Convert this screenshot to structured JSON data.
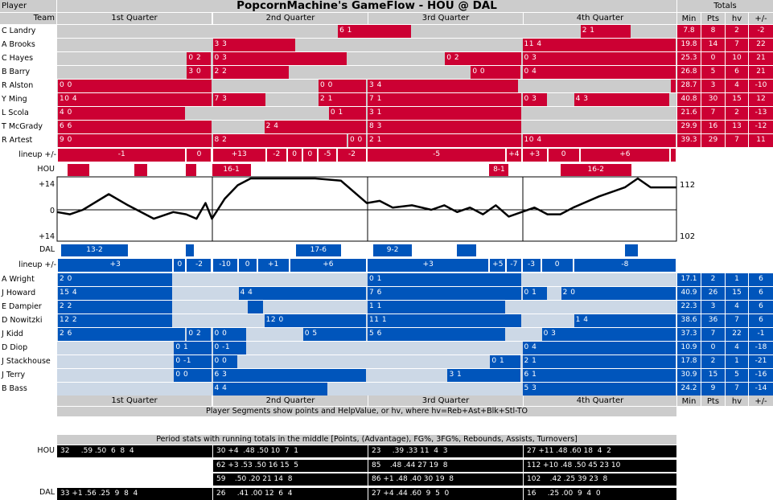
{
  "header": {
    "player_label": "Player",
    "team_label": "Team",
    "title": "PopcornMachine's GameFlow - HOU @ DAL",
    "totals_label": "Totals",
    "quarters": [
      "1st Quarter",
      "2nd Quarter",
      "3rd Quarter",
      "4th Quarter"
    ],
    "total_cols": [
      "Min",
      "Pts",
      "hv",
      "+/-"
    ]
  },
  "colors": {
    "hou": "#cc0033",
    "dal": "#0055bb",
    "hou_bg": "#cccccc",
    "dal_bg": "#ccd8e6"
  },
  "hou": {
    "team": "HOU",
    "lineup_label": "lineup +/-",
    "players": [
      {
        "name": "C Landry",
        "segments": [
          {
            "t0": 21.7,
            "t1": 27.5,
            "label": "6 1"
          },
          {
            "t0": 40.5,
            "t1": 44.5,
            "label": "2 1"
          }
        ],
        "totals": {
          "min": "7.8",
          "pts": "8",
          "hv": "2",
          "pm": "-2"
        }
      },
      {
        "name": "A Brooks",
        "segments": [
          {
            "t0": 12.0,
            "t1": 18.5,
            "label": "3 3"
          },
          {
            "t0": 36.0,
            "t1": 48.0,
            "label": "11 4"
          }
        ],
        "totals": {
          "min": "19.8",
          "pts": "14",
          "hv": "7",
          "pm": "22"
        }
      },
      {
        "name": "C Hayes",
        "segments": [
          {
            "t0": 10.0,
            "t1": 12.0,
            "label": "0 2"
          },
          {
            "t0": 12.0,
            "t1": 22.5,
            "label": "0 3"
          },
          {
            "t0": 30.0,
            "t1": 36.0,
            "label": "0 2"
          },
          {
            "t0": 36.0,
            "t1": 48.0,
            "label": "0 3"
          }
        ],
        "totals": {
          "min": "25.3",
          "pts": "0",
          "hv": "10",
          "pm": "21"
        }
      },
      {
        "name": "B Barry",
        "segments": [
          {
            "t0": 10.0,
            "t1": 12.0,
            "label": "3 0"
          },
          {
            "t0": 12.0,
            "t1": 18.0,
            "label": "2 2"
          },
          {
            "t0": 32.0,
            "t1": 36.0,
            "label": "0 0"
          },
          {
            "t0": 36.0,
            "t1": 48.0,
            "label": "0 4"
          }
        ],
        "totals": {
          "min": "26.8",
          "pts": "5",
          "hv": "6",
          "pm": "21"
        }
      },
      {
        "name": "R Alston",
        "segments": [
          {
            "t0": 0.0,
            "t1": 12.0,
            "label": "0 0"
          },
          {
            "t0": 20.2,
            "t1": 24.0,
            "label": "0 0"
          },
          {
            "t0": 24.0,
            "t1": 35.8,
            "label": "3 4"
          },
          {
            "t0": 47.5,
            "t1": 48.0,
            "label": ""
          }
        ],
        "totals": {
          "min": "28.7",
          "pts": "3",
          "hv": "4",
          "pm": "-10"
        }
      },
      {
        "name": "Y Ming",
        "segments": [
          {
            "t0": 0.0,
            "t1": 12.0,
            "label": "10 4"
          },
          {
            "t0": 12.0,
            "t1": 16.2,
            "label": "7 3"
          },
          {
            "t0": 20.2,
            "t1": 24.0,
            "label": "2 1"
          },
          {
            "t0": 24.0,
            "t1": 36.0,
            "label": "7 1"
          },
          {
            "t0": 36.0,
            "t1": 38.0,
            "label": "0 3"
          },
          {
            "t0": 40.0,
            "t1": 47.5,
            "label": "4 3"
          }
        ],
        "totals": {
          "min": "40.8",
          "pts": "30",
          "hv": "15",
          "pm": "12"
        }
      },
      {
        "name": "L Scola",
        "segments": [
          {
            "t0": 0.0,
            "t1": 10.0,
            "label": "4 0"
          },
          {
            "t0": 21.0,
            "t1": 24.0,
            "label": "0 1"
          },
          {
            "t0": 24.0,
            "t1": 36.0,
            "label": "3 1"
          }
        ],
        "totals": {
          "min": "21.6",
          "pts": "7",
          "hv": "2",
          "pm": "-13"
        }
      },
      {
        "name": "T McGrady",
        "segments": [
          {
            "t0": 0.0,
            "t1": 12.0,
            "label": "6 6"
          },
          {
            "t0": 16.0,
            "t1": 24.0,
            "label": "2 4"
          },
          {
            "t0": 24.0,
            "t1": 36.0,
            "label": "8 3"
          }
        ],
        "totals": {
          "min": "29.9",
          "pts": "16",
          "hv": "13",
          "pm": "-12"
        }
      },
      {
        "name": "R Artest",
        "segments": [
          {
            "t0": 0.0,
            "t1": 12.0,
            "label": "9 0"
          },
          {
            "t0": 12.0,
            "t1": 22.5,
            "label": "8 2"
          },
          {
            "t0": 22.5,
            "t1": 24.0,
            "label": "0 0"
          },
          {
            "t0": 24.0,
            "t1": 36.0,
            "label": "2 1"
          },
          {
            "t0": 36.0,
            "t1": 48.0,
            "label": "10 4"
          }
        ],
        "totals": {
          "min": "39.3",
          "pts": "29",
          "hv": "7",
          "pm": "11"
        }
      }
    ],
    "lineups": [
      {
        "t0": 0.0,
        "t1": 10.0,
        "v": "-1"
      },
      {
        "t0": 10.0,
        "t1": 12.0,
        "v": "0"
      },
      {
        "t0": 12.0,
        "t1": 16.2,
        "v": "+13"
      },
      {
        "t0": 16.2,
        "t1": 17.8,
        "v": "-2"
      },
      {
        "t0": 17.8,
        "t1": 19.0,
        "v": "0"
      },
      {
        "t0": 19.0,
        "t1": 20.2,
        "v": "0"
      },
      {
        "t0": 20.2,
        "t1": 21.7,
        "v": "-5"
      },
      {
        "t0": 21.7,
        "t1": 24.0,
        "v": "-2"
      },
      {
        "t0": 24.0,
        "t1": 34.8,
        "v": "-5"
      },
      {
        "t0": 34.8,
        "t1": 36.0,
        "v": "+4"
      },
      {
        "t0": 36.0,
        "t1": 38.0,
        "v": "+3"
      },
      {
        "t0": 38.0,
        "t1": 40.5,
        "v": "0"
      },
      {
        "t0": 40.5,
        "t1": 47.5,
        "v": "+6"
      },
      {
        "t0": 47.5,
        "t1": 48.0,
        "v": ""
      }
    ],
    "runs": [
      {
        "t0": 0.8,
        "t1": 2.5,
        "label": ""
      },
      {
        "t0": 6.0,
        "t1": 7.0,
        "label": ""
      },
      {
        "t0": 10.0,
        "t1": 10.8,
        "label": ""
      },
      {
        "t0": 12.0,
        "t1": 15.0,
        "label": "16-1"
      },
      {
        "t0": 33.5,
        "t1": 35.0,
        "label": "8-1"
      },
      {
        "t0": 39.0,
        "t1": 44.5,
        "label": "16-2"
      }
    ]
  },
  "dal": {
    "team": "DAL",
    "lineup_label": "lineup +/-",
    "players": [
      {
        "name": "A Wright",
        "segments": [
          {
            "t0": 0.0,
            "t1": 9.0,
            "label": "2 0"
          },
          {
            "t0": 24.0,
            "t1": 36.0,
            "label": "0 1"
          }
        ],
        "totals": {
          "min": "17.1",
          "pts": "2",
          "hv": "1",
          "pm": "6"
        }
      },
      {
        "name": "J Howard",
        "segments": [
          {
            "t0": 0.0,
            "t1": 9.0,
            "label": "15 4"
          },
          {
            "t0": 14.0,
            "t1": 24.0,
            "label": "4 4"
          },
          {
            "t0": 24.0,
            "t1": 36.0,
            "label": "7 6"
          },
          {
            "t0": 36.0,
            "t1": 38.0,
            "label": "0 1"
          },
          {
            "t0": 39.0,
            "t1": 48.0,
            "label": "2 0"
          }
        ],
        "totals": {
          "min": "40.9",
          "pts": "26",
          "hv": "15",
          "pm": "6"
        }
      },
      {
        "name": "E Dampier",
        "segments": [
          {
            "t0": 0.0,
            "t1": 9.0,
            "label": "2 2"
          },
          {
            "t0": 14.7,
            "t1": 16.0,
            "label": ""
          },
          {
            "t0": 24.0,
            "t1": 34.8,
            "label": "1 1"
          }
        ],
        "totals": {
          "min": "22.3",
          "pts": "3",
          "hv": "4",
          "pm": "6"
        }
      },
      {
        "name": "D Nowitzki",
        "segments": [
          {
            "t0": 0.0,
            "t1": 9.0,
            "label": "12 2"
          },
          {
            "t0": 16.0,
            "t1": 24.0,
            "label": "12 0"
          },
          {
            "t0": 24.0,
            "t1": 36.0,
            "label": "11 1"
          },
          {
            "t0": 40.0,
            "t1": 48.0,
            "label": "1 4"
          }
        ],
        "totals": {
          "min": "38.6",
          "pts": "36",
          "hv": "7",
          "pm": "6"
        }
      },
      {
        "name": "J Kidd",
        "segments": [
          {
            "t0": 0.0,
            "t1": 10.0,
            "label": "2 6"
          },
          {
            "t0": 10.0,
            "t1": 12.0,
            "label": "0 2"
          },
          {
            "t0": 12.0,
            "t1": 14.7,
            "label": "0 0"
          },
          {
            "t0": 19.0,
            "t1": 24.0,
            "label": "0 5"
          },
          {
            "t0": 24.0,
            "t1": 34.8,
            "label": "5 6"
          },
          {
            "t0": 37.5,
            "t1": 48.0,
            "label": "0 3"
          }
        ],
        "totals": {
          "min": "37.3",
          "pts": "7",
          "hv": "22",
          "pm": "-1"
        }
      },
      {
        "name": "D Diop",
        "segments": [
          {
            "t0": 9.0,
            "t1": 12.0,
            "label": "0 1"
          },
          {
            "t0": 12.0,
            "t1": 14.7,
            "label": "0 -1"
          },
          {
            "t0": 36.0,
            "t1": 48.0,
            "label": "0 4"
          }
        ],
        "totals": {
          "min": "10.9",
          "pts": "0",
          "hv": "4",
          "pm": "-18"
        }
      },
      {
        "name": "J Stackhouse",
        "segments": [
          {
            "t0": 9.0,
            "t1": 12.0,
            "label": "0 -1"
          },
          {
            "t0": 12.0,
            "t1": 14.0,
            "label": "0 0"
          },
          {
            "t0": 33.5,
            "t1": 36.0,
            "label": "0 1"
          },
          {
            "t0": 36.0,
            "t1": 48.0,
            "label": "2 1"
          }
        ],
        "totals": {
          "min": "17.8",
          "pts": "2",
          "hv": "1",
          "pm": "-21"
        }
      },
      {
        "name": "J Terry",
        "segments": [
          {
            "t0": 9.0,
            "t1": 12.0,
            "label": "0 0"
          },
          {
            "t0": 12.0,
            "t1": 24.0,
            "label": "6 3"
          },
          {
            "t0": 30.2,
            "t1": 36.0,
            "label": "3 1"
          },
          {
            "t0": 36.0,
            "t1": 48.0,
            "label": "6 1"
          }
        ],
        "totals": {
          "min": "30.9",
          "pts": "15",
          "hv": "5",
          "pm": "-16"
        }
      },
      {
        "name": "B Bass",
        "segments": [
          {
            "t0": 12.0,
            "t1": 21.0,
            "label": "4 4"
          },
          {
            "t0": 36.0,
            "t1": 48.0,
            "label": "5 3"
          }
        ],
        "totals": {
          "min": "24.2",
          "pts": "9",
          "hv": "7",
          "pm": "-14"
        }
      }
    ],
    "lineups": [
      {
        "t0": 0.0,
        "t1": 9.0,
        "v": "+3"
      },
      {
        "t0": 9.0,
        "t1": 10.0,
        "v": "0"
      },
      {
        "t0": 10.0,
        "t1": 12.0,
        "v": "-2"
      },
      {
        "t0": 12.0,
        "t1": 14.0,
        "v": "-10"
      },
      {
        "t0": 14.0,
        "t1": 15.5,
        "v": "0"
      },
      {
        "t0": 15.5,
        "t1": 18.0,
        "v": "+1"
      },
      {
        "t0": 18.0,
        "t1": 24.0,
        "v": "+6"
      },
      {
        "t0": 24.0,
        "t1": 33.5,
        "v": "+3"
      },
      {
        "t0": 33.5,
        "t1": 34.8,
        "v": "+5"
      },
      {
        "t0": 34.8,
        "t1": 36.0,
        "v": "-7"
      },
      {
        "t0": 36.0,
        "t1": 37.5,
        "v": "-3"
      },
      {
        "t0": 37.5,
        "t1": 40.0,
        "v": "0"
      },
      {
        "t0": 40.0,
        "t1": 48.0,
        "v": "-8"
      }
    ],
    "runs": [
      {
        "t0": 0.3,
        "t1": 5.5,
        "label": "13-2"
      },
      {
        "t0": 10.0,
        "t1": 10.6,
        "label": ""
      },
      {
        "t0": 18.5,
        "t1": 22.0,
        "label": "17-6"
      },
      {
        "t0": 24.5,
        "t1": 27.5,
        "label": "9-2"
      },
      {
        "t0": 31.0,
        "t1": 32.5,
        "label": ""
      },
      {
        "t0": 44.0,
        "t1": 45.0,
        "label": ""
      }
    ]
  },
  "chart_data": {
    "type": "line",
    "title": "PopcornMachine's GameFlow - HOU @ DAL",
    "x_domain": [
      0,
      48
    ],
    "y_axis_labels": [
      "+14",
      "0",
      "+14"
    ],
    "ylim": [
      -14,
      14
    ],
    "final_scores": {
      "HOU": "112",
      "DAL": "102"
    },
    "series": [
      {
        "x": [
          0,
          1.0,
          2.0,
          4.0,
          5.5,
          7.5,
          9.0,
          10.0,
          10.8,
          11.5,
          12.0,
          13.0,
          14.0,
          15.0,
          16.5,
          18.0,
          20.0,
          22.0,
          24.0,
          25.0,
          26.0,
          27.5,
          29.0,
          30.0,
          31.0,
          32.0,
          33.0,
          34.0,
          35.0,
          36.0,
          37.0,
          38.0,
          39.0,
          40.0,
          42.0,
          44.0,
          45.0,
          46.0,
          48.0
        ],
        "y": [
          -1,
          -2,
          0,
          7,
          2,
          -4,
          -1,
          -2,
          -4,
          3,
          -4,
          5,
          11,
          14,
          14,
          14,
          14,
          13,
          3,
          4,
          1,
          2,
          0,
          2,
          -1,
          1,
          -2,
          2,
          -3,
          -1,
          1,
          -2,
          -2,
          1,
          6,
          10,
          14,
          10,
          10
        ]
      }
    ]
  },
  "footer": {
    "note": "Player Segments show points and HelpValue, or hv, where hv=Reb+Ast+Blk+Stl-TO"
  },
  "stats": {
    "title": "Period stats with running totals in the middle [Points, (Advantage), FG%, 3FG%, Rebounds, Assists, Turnovers]",
    "hou_label": "HOU",
    "dal_label": "DAL",
    "rows": [
      [
        "32     .59 .50  6  8  4",
        "30 +4  .48 .50 10  7  1",
        "23     .39 .33 11  4  3",
        "27 +11 .48 .60 18  4  2"
      ],
      [
        "",
        "62 +3 .53 .50 16 15  5",
        "85    .48 .44 27 19  8",
        "112 +10 .48 .50 45 23 10"
      ],
      [
        "",
        "59    .50 .20 21 14  8",
        "86 +1 .48 .40 30 19  8",
        "102    .42 .25 39 23  8"
      ],
      [
        "33 +1 .56 .25  9  8  4",
        "26     .41 .00 12  6  4",
        "27 +4 .44 .60  9  5  0",
        "16     .25 .00  9  4  0"
      ]
    ]
  }
}
